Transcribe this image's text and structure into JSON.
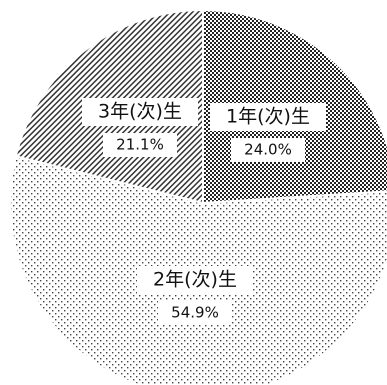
{
  "chart_data": {
    "type": "pie",
    "slices": [
      {
        "label": "1年(次)生",
        "value": 24.0,
        "value_label": "24.0%",
        "pattern": "dense-dots"
      },
      {
        "label": "2年(次)生",
        "value": 54.9,
        "value_label": "54.9%",
        "pattern": "sparse-dots"
      },
      {
        "label": "3年(次)生",
        "value": 21.1,
        "value_label": "21.1%",
        "pattern": "diagonal-lines"
      }
    ],
    "start": "12 o'clock",
    "direction": "clockwise",
    "legend": "none"
  }
}
